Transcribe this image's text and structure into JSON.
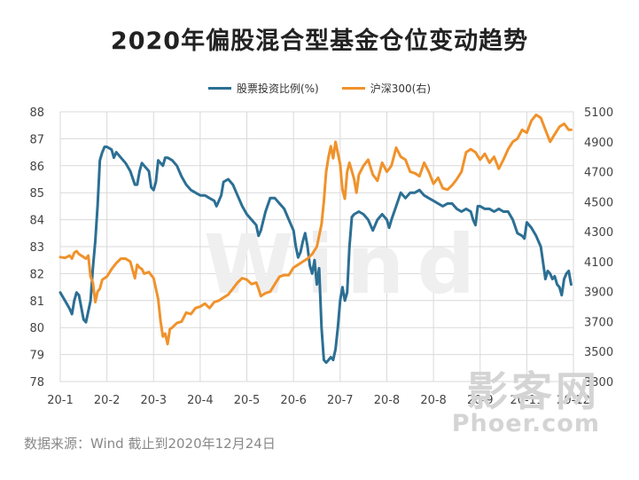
{
  "chart_data": {
    "type": "line",
    "title": "2020年偏股混合型基金仓位变动趋势",
    "x_categories": [
      "20-1",
      "20-2",
      "20-3",
      "20-4",
      "20-5",
      "20-6",
      "20-7",
      "20-8",
      "20-8",
      "20-9",
      "20-11",
      "20-12"
    ],
    "y_left": {
      "ticks": [
        "78",
        "79",
        "80",
        "81",
        "82",
        "83",
        "84",
        "85",
        "86",
        "87",
        "88"
      ],
      "range": [
        78,
        88
      ]
    },
    "y_right": {
      "ticks": [
        "3300",
        "3500",
        "3700",
        "3900",
        "4100",
        "4300",
        "4500",
        "4700",
        "4900",
        "5100"
      ],
      "range": [
        3300,
        5100
      ]
    },
    "grid": true,
    "legend_position": "top-center",
    "series": [
      {
        "name": "股票投资比例(%)",
        "color": "#2c6f94",
        "axis": "left",
        "points": [
          [
            0.0,
            81.3
          ],
          [
            0.1,
            81.0
          ],
          [
            0.2,
            80.7
          ],
          [
            0.25,
            80.5
          ],
          [
            0.3,
            81.0
          ],
          [
            0.35,
            81.3
          ],
          [
            0.4,
            81.2
          ],
          [
            0.5,
            80.3
          ],
          [
            0.55,
            80.2
          ],
          [
            0.6,
            80.6
          ],
          [
            0.65,
            81.0
          ],
          [
            0.7,
            82.2
          ],
          [
            0.75,
            83.2
          ],
          [
            0.8,
            84.5
          ],
          [
            0.85,
            86.2
          ],
          [
            0.9,
            86.5
          ],
          [
            0.95,
            86.7
          ],
          [
            1.0,
            86.7
          ],
          [
            1.1,
            86.6
          ],
          [
            1.15,
            86.3
          ],
          [
            1.2,
            86.5
          ],
          [
            1.3,
            86.3
          ],
          [
            1.4,
            86.1
          ],
          [
            1.5,
            85.8
          ],
          [
            1.6,
            85.3
          ],
          [
            1.65,
            85.3
          ],
          [
            1.7,
            85.8
          ],
          [
            1.75,
            86.1
          ],
          [
            1.8,
            86.0
          ],
          [
            1.9,
            85.8
          ],
          [
            1.95,
            85.2
          ],
          [
            2.0,
            85.1
          ],
          [
            2.05,
            85.4
          ],
          [
            2.1,
            86.2
          ],
          [
            2.2,
            86.0
          ],
          [
            2.25,
            86.3
          ],
          [
            2.3,
            86.3
          ],
          [
            2.4,
            86.2
          ],
          [
            2.5,
            86.0
          ],
          [
            2.6,
            85.6
          ],
          [
            2.7,
            85.3
          ],
          [
            2.8,
            85.1
          ],
          [
            2.9,
            85.0
          ],
          [
            3.0,
            84.9
          ],
          [
            3.1,
            84.9
          ],
          [
            3.2,
            84.8
          ],
          [
            3.3,
            84.7
          ],
          [
            3.35,
            84.5
          ],
          [
            3.4,
            84.7
          ],
          [
            3.45,
            84.9
          ],
          [
            3.5,
            85.4
          ],
          [
            3.6,
            85.5
          ],
          [
            3.7,
            85.3
          ],
          [
            3.8,
            84.9
          ],
          [
            3.9,
            84.5
          ],
          [
            4.0,
            84.2
          ],
          [
            4.1,
            84.0
          ],
          [
            4.2,
            83.8
          ],
          [
            4.25,
            83.4
          ],
          [
            4.3,
            83.6
          ],
          [
            4.4,
            84.3
          ],
          [
            4.5,
            84.8
          ],
          [
            4.6,
            84.8
          ],
          [
            4.7,
            84.6
          ],
          [
            4.8,
            84.4
          ],
          [
            4.9,
            84.0
          ],
          [
            5.0,
            83.6
          ],
          [
            5.05,
            83.0
          ],
          [
            5.1,
            82.6
          ],
          [
            5.15,
            82.8
          ],
          [
            5.2,
            83.2
          ],
          [
            5.25,
            83.5
          ],
          [
            5.3,
            83.0
          ],
          [
            5.35,
            82.3
          ],
          [
            5.4,
            82.0
          ],
          [
            5.45,
            82.5
          ],
          [
            5.5,
            81.6
          ],
          [
            5.55,
            82.2
          ],
          [
            5.6,
            80.0
          ],
          [
            5.65,
            78.8
          ],
          [
            5.7,
            78.7
          ],
          [
            5.75,
            78.8
          ],
          [
            5.8,
            78.9
          ],
          [
            5.85,
            78.8
          ],
          [
            5.9,
            79.2
          ],
          [
            5.95,
            80.0
          ],
          [
            6.0,
            81.0
          ],
          [
            6.05,
            81.5
          ],
          [
            6.1,
            81.0
          ],
          [
            6.15,
            81.3
          ],
          [
            6.2,
            83.0
          ],
          [
            6.25,
            84.1
          ],
          [
            6.3,
            84.2
          ],
          [
            6.4,
            84.3
          ],
          [
            6.5,
            84.2
          ],
          [
            6.6,
            84.0
          ],
          [
            6.7,
            83.6
          ],
          [
            6.8,
            84.0
          ],
          [
            6.9,
            84.2
          ],
          [
            7.0,
            84.0
          ],
          [
            7.05,
            83.7
          ],
          [
            7.1,
            84.0
          ],
          [
            7.2,
            84.5
          ],
          [
            7.3,
            85.0
          ],
          [
            7.4,
            84.8
          ],
          [
            7.5,
            85.0
          ],
          [
            7.6,
            85.0
          ],
          [
            7.7,
            85.1
          ],
          [
            7.8,
            84.9
          ],
          [
            7.9,
            84.8
          ],
          [
            8.0,
            84.7
          ],
          [
            8.1,
            84.6
          ],
          [
            8.2,
            84.5
          ],
          [
            8.3,
            84.6
          ],
          [
            8.4,
            84.6
          ],
          [
            8.5,
            84.4
          ],
          [
            8.6,
            84.3
          ],
          [
            8.7,
            84.4
          ],
          [
            8.8,
            84.3
          ],
          [
            8.85,
            84.0
          ],
          [
            8.9,
            83.8
          ],
          [
            8.95,
            84.5
          ],
          [
            9.0,
            84.5
          ],
          [
            9.1,
            84.4
          ],
          [
            9.2,
            84.4
          ],
          [
            9.3,
            84.3
          ],
          [
            9.4,
            84.4
          ],
          [
            9.5,
            84.3
          ],
          [
            9.6,
            84.3
          ],
          [
            9.7,
            84.0
          ],
          [
            9.8,
            83.5
          ],
          [
            9.9,
            83.4
          ],
          [
            9.95,
            83.3
          ],
          [
            10.0,
            83.9
          ],
          [
            10.1,
            83.7
          ],
          [
            10.2,
            83.4
          ],
          [
            10.3,
            83.0
          ],
          [
            10.35,
            82.4
          ],
          [
            10.4,
            81.8
          ],
          [
            10.45,
            82.1
          ],
          [
            10.5,
            82.0
          ],
          [
            10.55,
            81.8
          ],
          [
            10.6,
            81.9
          ],
          [
            10.65,
            81.6
          ],
          [
            10.7,
            81.5
          ],
          [
            10.75,
            81.2
          ],
          [
            10.8,
            81.8
          ],
          [
            10.85,
            82.0
          ],
          [
            10.9,
            82.1
          ],
          [
            10.95,
            81.6
          ]
        ]
      },
      {
        "name": "沪深300(右)",
        "color": "#f0922b",
        "axis": "right",
        "points": [
          [
            0.0,
            4130
          ],
          [
            0.1,
            4125
          ],
          [
            0.2,
            4140
          ],
          [
            0.25,
            4120
          ],
          [
            0.3,
            4160
          ],
          [
            0.35,
            4170
          ],
          [
            0.4,
            4150
          ],
          [
            0.5,
            4130
          ],
          [
            0.55,
            4120
          ],
          [
            0.6,
            4140
          ],
          [
            0.65,
            4000
          ],
          [
            0.7,
            3960
          ],
          [
            0.75,
            3830
          ],
          [
            0.8,
            3900
          ],
          [
            0.85,
            3920
          ],
          [
            0.9,
            3980
          ],
          [
            1.0,
            4000
          ],
          [
            1.1,
            4050
          ],
          [
            1.2,
            4090
          ],
          [
            1.3,
            4120
          ],
          [
            1.4,
            4120
          ],
          [
            1.5,
            4100
          ],
          [
            1.6,
            3990
          ],
          [
            1.65,
            4080
          ],
          [
            1.7,
            4060
          ],
          [
            1.75,
            4050
          ],
          [
            1.8,
            4020
          ],
          [
            1.9,
            4030
          ],
          [
            2.0,
            3990
          ],
          [
            2.1,
            3850
          ],
          [
            2.15,
            3700
          ],
          [
            2.2,
            3600
          ],
          [
            2.25,
            3620
          ],
          [
            2.3,
            3550
          ],
          [
            2.35,
            3650
          ],
          [
            2.4,
            3660
          ],
          [
            2.5,
            3690
          ],
          [
            2.6,
            3700
          ],
          [
            2.7,
            3760
          ],
          [
            2.8,
            3750
          ],
          [
            2.9,
            3790
          ],
          [
            3.0,
            3800
          ],
          [
            3.1,
            3820
          ],
          [
            3.2,
            3790
          ],
          [
            3.3,
            3830
          ],
          [
            3.4,
            3840
          ],
          [
            3.5,
            3860
          ],
          [
            3.6,
            3880
          ],
          [
            3.7,
            3920
          ],
          [
            3.8,
            3960
          ],
          [
            3.9,
            3990
          ],
          [
            4.0,
            3980
          ],
          [
            4.1,
            3950
          ],
          [
            4.2,
            3960
          ],
          [
            4.25,
            3920
          ],
          [
            4.3,
            3870
          ],
          [
            4.4,
            3890
          ],
          [
            4.5,
            3900
          ],
          [
            4.6,
            3950
          ],
          [
            4.7,
            4000
          ],
          [
            4.8,
            4010
          ],
          [
            4.9,
            4010
          ],
          [
            5.0,
            4060
          ],
          [
            5.1,
            4080
          ],
          [
            5.2,
            4100
          ],
          [
            5.3,
            4120
          ],
          [
            5.4,
            4150
          ],
          [
            5.5,
            4200
          ],
          [
            5.6,
            4350
          ],
          [
            5.65,
            4500
          ],
          [
            5.7,
            4700
          ],
          [
            5.75,
            4800
          ],
          [
            5.8,
            4870
          ],
          [
            5.85,
            4790
          ],
          [
            5.9,
            4900
          ],
          [
            6.0,
            4750
          ],
          [
            6.05,
            4580
          ],
          [
            6.1,
            4520
          ],
          [
            6.15,
            4700
          ],
          [
            6.2,
            4760
          ],
          [
            6.3,
            4650
          ],
          [
            6.35,
            4560
          ],
          [
            6.4,
            4680
          ],
          [
            6.5,
            4740
          ],
          [
            6.6,
            4780
          ],
          [
            6.7,
            4680
          ],
          [
            6.8,
            4640
          ],
          [
            6.9,
            4760
          ],
          [
            7.0,
            4700
          ],
          [
            7.1,
            4740
          ],
          [
            7.2,
            4860
          ],
          [
            7.3,
            4800
          ],
          [
            7.4,
            4780
          ],
          [
            7.5,
            4700
          ],
          [
            7.6,
            4690
          ],
          [
            7.7,
            4670
          ],
          [
            7.8,
            4760
          ],
          [
            7.9,
            4700
          ],
          [
            8.0,
            4620
          ],
          [
            8.1,
            4660
          ],
          [
            8.2,
            4590
          ],
          [
            8.3,
            4580
          ],
          [
            8.4,
            4610
          ],
          [
            8.5,
            4650
          ],
          [
            8.6,
            4700
          ],
          [
            8.7,
            4830
          ],
          [
            8.8,
            4850
          ],
          [
            8.9,
            4830
          ],
          [
            9.0,
            4780
          ],
          [
            9.1,
            4820
          ],
          [
            9.2,
            4760
          ],
          [
            9.3,
            4800
          ],
          [
            9.4,
            4720
          ],
          [
            9.5,
            4780
          ],
          [
            9.6,
            4850
          ],
          [
            9.7,
            4900
          ],
          [
            9.8,
            4920
          ],
          [
            9.9,
            4980
          ],
          [
            10.0,
            4960
          ],
          [
            10.1,
            5040
          ],
          [
            10.2,
            5080
          ],
          [
            10.3,
            5060
          ],
          [
            10.4,
            4980
          ],
          [
            10.5,
            4900
          ],
          [
            10.6,
            4950
          ],
          [
            10.7,
            5000
          ],
          [
            10.8,
            5020
          ],
          [
            10.85,
            5000
          ],
          [
            10.9,
            4980
          ],
          [
            10.95,
            4980
          ]
        ]
      }
    ]
  },
  "source_text": "数据来源：Wind    截止到2020年12月24日",
  "watermarks": {
    "chart_center": "Wind",
    "logo_top": "影客网",
    "logo_bottom": "Phoer.com"
  }
}
